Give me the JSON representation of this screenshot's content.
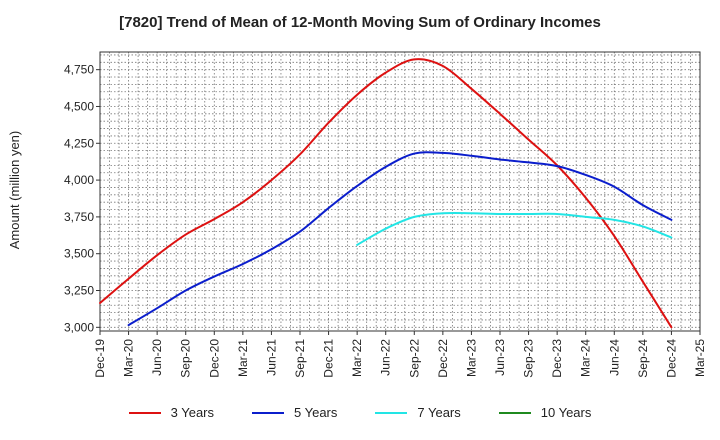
{
  "chart_data": {
    "type": "line",
    "title": "[7820]  Trend of Mean of 12-Month Moving Sum of Ordinary Incomes",
    "xlabel": "",
    "ylabel": "Amount (million yen)",
    "ylim": [
      2975,
      4870
    ],
    "yticks": [
      3000,
      3250,
      3500,
      3750,
      4000,
      4250,
      4500,
      4750
    ],
    "ytick_labels": [
      "3,000",
      "3,250",
      "3,500",
      "3,750",
      "4,000",
      "4,250",
      "4,500",
      "4,750"
    ],
    "categories": [
      "Dec-19",
      "Mar-20",
      "Jun-20",
      "Sep-20",
      "Dec-20",
      "Mar-21",
      "Jun-21",
      "Sep-21",
      "Dec-21",
      "Mar-22",
      "Jun-22",
      "Sep-22",
      "Dec-22",
      "Mar-23",
      "Jun-23",
      "Sep-23",
      "Dec-23",
      "Mar-24",
      "Jun-24",
      "Sep-24",
      "Dec-24",
      "Mar-25"
    ],
    "grid": true,
    "series": [
      {
        "name": "3 Years",
        "color": "#dd1111",
        "values": [
          3165,
          3330,
          3490,
          3630,
          3735,
          3850,
          4000,
          4175,
          4390,
          4580,
          4730,
          4820,
          4775,
          4620,
          4450,
          4275,
          4100,
          3880,
          3620,
          3310,
          3000,
          null
        ]
      },
      {
        "name": "5 Years",
        "color": "#0b1ecc",
        "values": [
          null,
          3015,
          3130,
          3250,
          3345,
          3430,
          3530,
          3650,
          3810,
          3960,
          4090,
          4180,
          4185,
          4165,
          4140,
          4120,
          4095,
          4035,
          3955,
          3830,
          3730,
          null
        ]
      },
      {
        "name": "7 Years",
        "color": "#22e5e5",
        "values": [
          null,
          null,
          null,
          null,
          null,
          null,
          null,
          null,
          null,
          3560,
          3670,
          3750,
          3775,
          3775,
          3770,
          3770,
          3770,
          3750,
          3730,
          3685,
          3610,
          null
        ]
      },
      {
        "name": "10 Years",
        "color": "#1f8a1f",
        "values": [
          null,
          null,
          null,
          null,
          null,
          null,
          null,
          null,
          null,
          null,
          null,
          null,
          null,
          null,
          null,
          null,
          null,
          null,
          null,
          null,
          null,
          null
        ]
      }
    ]
  }
}
